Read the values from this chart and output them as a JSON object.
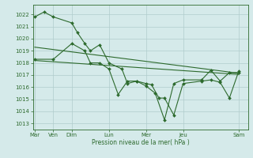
{
  "background_color": "#d5eaea",
  "grid_color": "#b0cccc",
  "line_color": "#2d6a2d",
  "ylabel_ticks": [
    1013,
    1014,
    1015,
    1016,
    1017,
    1018,
    1019,
    1020,
    1021,
    1022
  ],
  "ylim": [
    1012.5,
    1022.8
  ],
  "xlabel": "Pression niveau de la mer( hPa )",
  "x_day_positions": [
    0,
    1,
    2,
    4,
    6,
    8,
    11
  ],
  "x_day_labels": [
    "Mar",
    "Ven",
    "Dim",
    "Lun",
    "Mer",
    "Jeu",
    "Sam"
  ],
  "xlim": [
    -0.1,
    11.5
  ],
  "series1_x": [
    0,
    0.5,
    1,
    2,
    2.3,
    2.7,
    3,
    3.5,
    4,
    4.7,
    5,
    5.5,
    6,
    6.3,
    6.7,
    7,
    7.5,
    8,
    9,
    9.5,
    10,
    10.5,
    11
  ],
  "series1_y": [
    1021.8,
    1022.2,
    1021.8,
    1021.3,
    1020.5,
    1019.6,
    1019.0,
    1019.5,
    1018.0,
    1017.5,
    1016.3,
    1016.5,
    1016.3,
    1016.2,
    1015.1,
    1015.1,
    1013.7,
    1016.3,
    1016.5,
    1016.6,
    1016.4,
    1015.1,
    1017.3
  ],
  "series2_x": [
    0,
    1,
    2,
    2.7,
    3,
    3.5,
    4,
    4.5,
    5,
    5.5,
    6,
    6.5,
    7,
    7.5,
    8,
    9,
    9.5,
    10,
    10.5,
    11
  ],
  "series2_y": [
    1018.3,
    1018.3,
    1019.6,
    1019.0,
    1018.0,
    1018.0,
    1017.5,
    1015.4,
    1016.5,
    1016.5,
    1016.1,
    1015.5,
    1013.3,
    1016.3,
    1016.6,
    1016.6,
    1017.4,
    1016.5,
    1017.2,
    1017.2
  ],
  "trend1_x": [
    0,
    11
  ],
  "trend1_y": [
    1019.3,
    1017.15
  ],
  "trend2_x": [
    0,
    11
  ],
  "trend2_y": [
    1018.2,
    1017.05
  ],
  "marker": "D",
  "markersize": 2.0,
  "linewidth": 0.8
}
